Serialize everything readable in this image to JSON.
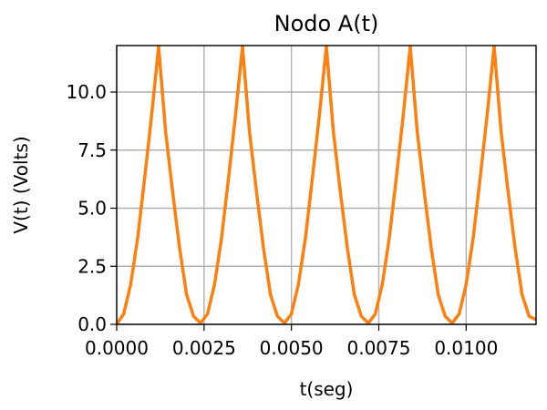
{
  "chart_data": {
    "type": "line",
    "title": "Nodo A(t)",
    "xlabel": "t(seg)",
    "ylabel": "V(t) (Volts)",
    "xlim": [
      0,
      0.012
    ],
    "ylim": [
      0,
      12
    ],
    "grid": true,
    "x_ticks": [
      0,
      0.0025,
      0.005,
      0.0075,
      0.01
    ],
    "x_tick_labels": [
      "0.0000",
      "0.0025",
      "0.0050",
      "0.0075",
      "0.0100"
    ],
    "y_ticks": [
      0,
      2.5,
      5,
      7.5,
      10
    ],
    "y_tick_labels": [
      "0.0",
      "2.5",
      "5.0",
      "7.5",
      "10.0"
    ],
    "series": [
      {
        "color": "#ff7f0e",
        "x": [
          0,
          0.0002,
          0.0004,
          0.0006,
          0.0008,
          0.001,
          0.0012,
          0.0014,
          0.0016,
          0.0018,
          0.002,
          0.0022,
          0.0024,
          0.0026,
          0.0028,
          0.003,
          0.0032,
          0.0034,
          0.0036,
          0.0038,
          0.004,
          0.0042,
          0.0044,
          0.0046,
          0.0048,
          0.005,
          0.0052,
          0.0054,
          0.0056,
          0.0058,
          0.006,
          0.0062,
          0.0064,
          0.0066,
          0.0068,
          0.007,
          0.0072,
          0.0074,
          0.0076,
          0.0078,
          0.008,
          0.0082,
          0.0084,
          0.0086,
          0.0088,
          0.009,
          0.0092,
          0.0094,
          0.0096,
          0.0098,
          0.01,
          0.0102,
          0.0104,
          0.0106,
          0.0108,
          0.011,
          0.0112,
          0.0114,
          0.0116,
          0.0118,
          0.012
        ],
        "values": [
          0.0,
          0.45,
          1.72,
          3.71,
          6.29,
          9.0,
          11.96,
          8.29,
          5.71,
          3.29,
          1.28,
          0.35,
          0.05,
          0.45,
          1.72,
          3.71,
          6.29,
          9.0,
          11.96,
          8.29,
          5.71,
          3.29,
          1.28,
          0.35,
          0.05,
          0.45,
          1.72,
          3.71,
          6.29,
          9.0,
          11.96,
          8.29,
          5.71,
          3.29,
          1.28,
          0.35,
          0.05,
          0.45,
          1.72,
          3.71,
          6.29,
          9.0,
          11.96,
          8.29,
          5.71,
          3.29,
          1.28,
          0.35,
          0.05,
          0.45,
          1.72,
          3.71,
          6.29,
          9.0,
          11.96,
          8.29,
          5.71,
          3.29,
          1.28,
          0.35,
          0.2
        ]
      }
    ]
  }
}
